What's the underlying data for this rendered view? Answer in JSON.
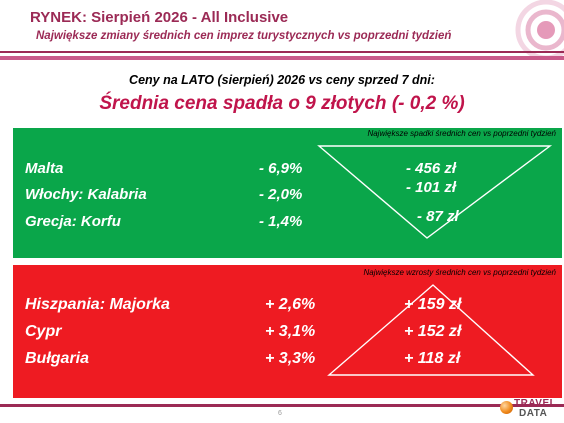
{
  "header": {
    "title": "RYNEK: Sierpień 2026 - All Inclusive",
    "subtitle": "Największe zmiany średnich cen imprez turystycznych vs poprzedni tydzień"
  },
  "intro": "Ceny na LATO (sierpień) 2026 vs ceny sprzed 7 dni:",
  "headline": "Średnia cena spadła o 9 złotych (- 0,2 %)",
  "decreases": {
    "caption": "Największe spadki średnich cen vs poprzedni tydzień",
    "rows": [
      {
        "destination": "Malta",
        "percent": "- 6,9%",
        "amount": "- 456 zł"
      },
      {
        "destination": "Włochy: Kalabria",
        "percent": "- 2,0%",
        "amount": "- 101 zł"
      },
      {
        "destination": "Grecja: Korfu",
        "percent": "- 1,4%",
        "amount": "- 87 zł"
      }
    ]
  },
  "increases": {
    "caption": "Największe wzrosty średnich cen vs poprzedni tydzień",
    "rows": [
      {
        "destination": "Hiszpania: Majorka",
        "percent": "+ 2,6%",
        "amount": "+ 159 zł"
      },
      {
        "destination": "Cypr",
        "percent": "+ 3,1%",
        "amount": "+ 152 zł"
      },
      {
        "destination": "Bułgaria",
        "percent": "+ 3,3%",
        "amount": "+ 118 zł"
      }
    ]
  },
  "footer": {
    "page_number": "6",
    "logo_line1": "TRAVEL",
    "logo_line2": "DATA"
  },
  "colors": {
    "brand": "#9b2a55",
    "headline": "#c0144b",
    "decrease_panel": "#0aa64a",
    "increase_panel": "#ee1b22"
  }
}
